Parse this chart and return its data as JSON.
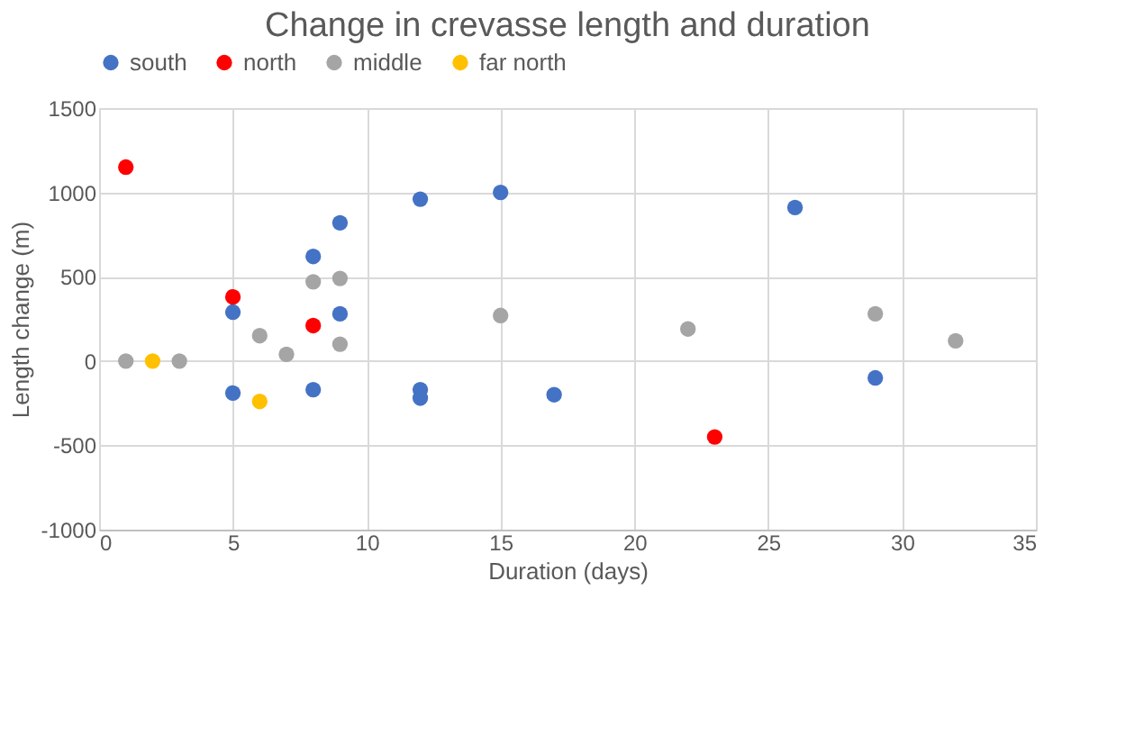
{
  "chart_data": {
    "type": "scatter",
    "title": "Change in crevasse length and duration",
    "xlabel": "Duration (days)",
    "ylabel": "Length change (m)",
    "xlim": [
      0,
      35
    ],
    "xticks": [
      0,
      5,
      10,
      15,
      20,
      25,
      30,
      35
    ],
    "ylim": [
      -1000,
      1500
    ],
    "yticks": [
      -1000,
      -500,
      0,
      500,
      1000,
      1500
    ],
    "grid": true,
    "legend": "top",
    "marker": "circle",
    "series": [
      {
        "name": "south",
        "color": "#4472c4",
        "x": [
          5,
          5,
          8,
          8,
          9,
          9,
          12,
          12,
          12,
          15,
          17,
          26,
          29
        ],
        "values": [
          290,
          -190,
          620,
          -170,
          820,
          280,
          960,
          -170,
          -220,
          1000,
          -200,
          910,
          -100
        ]
      },
      {
        "name": "north",
        "color": "#ff0000",
        "x": [
          1,
          5,
          8,
          23
        ],
        "values": [
          1150,
          380,
          210,
          -450
        ]
      },
      {
        "name": "middle",
        "color": "#a5a5a5",
        "x": [
          1,
          3,
          6,
          7,
          8,
          9,
          9,
          15,
          22,
          29,
          32
        ],
        "values": [
          0,
          0,
          150,
          40,
          470,
          490,
          100,
          270,
          190,
          280,
          120
        ]
      },
      {
        "name": "far north",
        "color": "#ffc000",
        "x": [
          2,
          6
        ],
        "values": [
          0,
          -240
        ]
      }
    ]
  }
}
